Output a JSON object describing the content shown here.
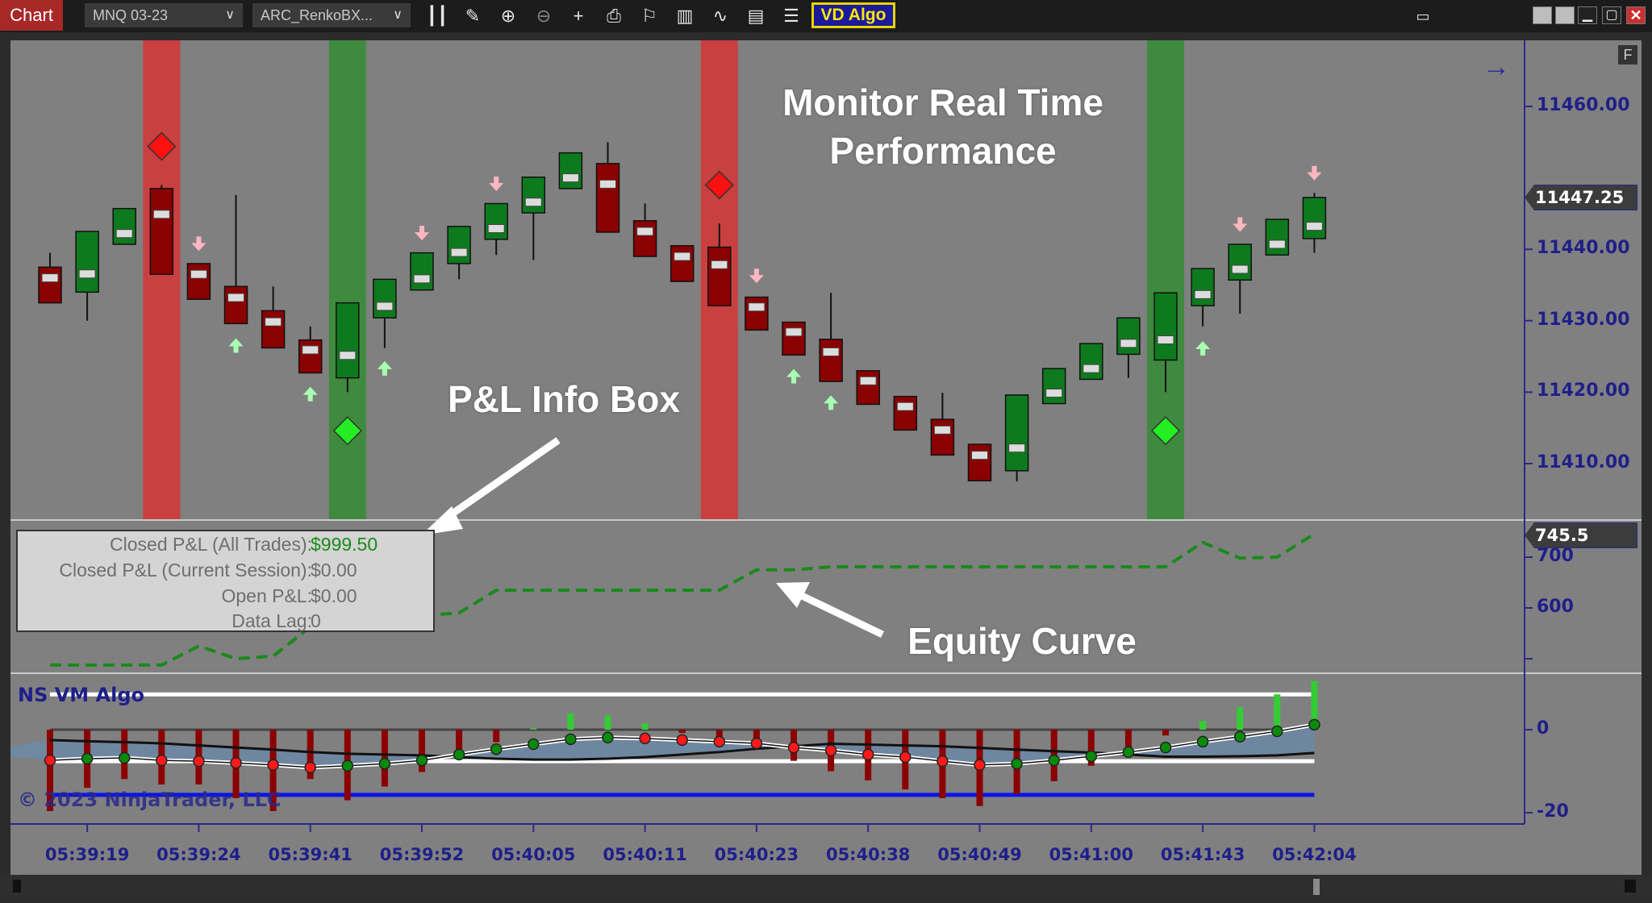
{
  "toolbar": {
    "chart_tab": "Chart",
    "instrument": "MNQ 03-23",
    "bar_type": "ARC_RenkoBX...",
    "vd_algo": "VD Algo",
    "icons": [
      "bar-chart-icon",
      "pencil-icon",
      "zoom-in-icon",
      "zoom-out-icon",
      "crosshair-icon",
      "data-box-icon",
      "strategy-flag-icon",
      "chart-style-icon",
      "line-chart-icon",
      "properties-icon",
      "list-icon"
    ],
    "colors": {
      "chart_tab": "#a82828",
      "vd_algo_bg": "#1a1a9a",
      "vd_algo_border": "#e8d400"
    }
  },
  "annotations": {
    "monitor_line1": "Monitor Real Time",
    "monitor_line2": "Performance",
    "pnl_box_label": "P&L Info Box",
    "equity_label": "Equity Curve"
  },
  "pnl_box": {
    "rows": [
      {
        "label": "Closed P&L (All Trades):",
        "value": "$999.50",
        "color": "#1a8a1a"
      },
      {
        "label": "Closed P&L (Current Session):",
        "value": "$0.00"
      },
      {
        "label": "Open P&L:",
        "value": "$0.00"
      },
      {
        "label": "Data Lag:",
        "value": "0"
      }
    ]
  },
  "price_axis": {
    "labels": [
      "11460.00",
      "11440.00",
      "11430.00",
      "11420.00",
      "11410.00"
    ],
    "last_price": "11447.25",
    "f_button": "F"
  },
  "equity_axis": {
    "labels": [
      "700",
      "600"
    ],
    "last_value": "745.5"
  },
  "indicator": {
    "title": "NS VM Algo",
    "labels": [
      "0",
      "-20"
    ],
    "copyright": "© 2023 NinjaTrader, LLC"
  },
  "time_labels": [
    "05:39:19",
    "05:39:24",
    "05:39:41",
    "05:39:52",
    "05:40:05",
    "05:40:11",
    "05:40:23",
    "05:40:38",
    "05:40:49",
    "05:41:00",
    "05:41:43",
    "05:42:04"
  ],
  "chart_data": {
    "type": "candlestick",
    "price_range": [
      11402,
      11467
    ],
    "candles": [
      [
        11437.5,
        11439.5,
        11432.5,
        11432.5
      ],
      [
        11434,
        11442.5,
        11430,
        11442.5
      ],
      [
        11440.7,
        11445.7,
        11440.7,
        11445.7
      ],
      [
        11448.5,
        11449,
        11436.5,
        11436.5
      ],
      [
        11438,
        11438,
        11433,
        11433
      ],
      [
        11434.8,
        11447.6,
        11429.6,
        11429.6
      ],
      [
        11431.4,
        11434.8,
        11426.2,
        11426.2
      ],
      [
        11427.3,
        11429.2,
        11422.7,
        11422.7
      ],
      [
        11422,
        11432.5,
        11420,
        11432.5
      ],
      [
        11430.4,
        11435.8,
        11426.2,
        11435.8
      ],
      [
        11434.3,
        11439.5,
        11434.3,
        11439.5
      ],
      [
        11438,
        11443.2,
        11435.8,
        11443.2
      ],
      [
        11441.4,
        11446.4,
        11439.2,
        11446.4
      ],
      [
        11445.1,
        11450.1,
        11438.5,
        11450.1
      ],
      [
        11448.5,
        11453.5,
        11448.5,
        11453.5
      ],
      [
        11452,
        11455,
        11442.4,
        11442.4
      ],
      [
        11444,
        11446.4,
        11439,
        11439
      ],
      [
        11440.5,
        11440.5,
        11435.5,
        11435.5
      ],
      [
        11440.3,
        11443.6,
        11432.1,
        11432.1
      ],
      [
        11433.3,
        11433.3,
        11428.7,
        11428.7
      ],
      [
        11429.8,
        11429.8,
        11425.2,
        11425.2
      ],
      [
        11427.4,
        11433.9,
        11421.5,
        11421.5
      ],
      [
        11423,
        11423,
        11418.3,
        11418.3
      ],
      [
        11419.4,
        11419.4,
        11414.7,
        11414.7
      ],
      [
        11416.2,
        11419.9,
        11411.2,
        11411.2
      ],
      [
        11412.7,
        11412.7,
        11407.6,
        11407.6
      ],
      [
        11409,
        11419.6,
        11407.5,
        11419.6
      ],
      [
        11418.4,
        11423.3,
        11418.4,
        11423.3
      ],
      [
        11421.8,
        11426.8,
        11421.8,
        11426.8
      ],
      [
        11425.3,
        11430.4,
        11422,
        11430.4
      ],
      [
        11424.5,
        11433.9,
        11420,
        11433.9
      ],
      [
        11432.1,
        11437.3,
        11429.2,
        11437.3
      ],
      [
        11435.7,
        11440.7,
        11431,
        11440.7
      ],
      [
        11439.2,
        11444.2,
        11439.2,
        11444.2
      ],
      [
        11441.5,
        11447.9,
        11439.5,
        11447.25
      ]
    ],
    "signal_bands": [
      {
        "bar": 3,
        "side": "short"
      },
      {
        "bar": 8,
        "side": "long"
      },
      {
        "bar": 18,
        "side": "short"
      },
      {
        "bar": 30,
        "side": "long"
      }
    ],
    "signal_diamonds": [
      {
        "bar": 3,
        "price": 11454.4,
        "side": "short"
      },
      {
        "bar": 8,
        "price": 11414.6,
        "side": "long"
      },
      {
        "bar": 18,
        "price": 11449,
        "side": "short"
      },
      {
        "bar": 30,
        "price": 11414.6,
        "side": "long"
      }
    ],
    "down_arrows": [
      {
        "bar": 4,
        "price": 11440.2
      },
      {
        "bar": 10,
        "price": 11441.7
      },
      {
        "bar": 12,
        "price": 11448.6
      },
      {
        "bar": 19,
        "price": 11435.7
      },
      {
        "bar": 32,
        "price": 11442.9
      },
      {
        "bar": 34,
        "price": 11450.1
      }
    ],
    "up_arrows": [
      {
        "bar": 5,
        "price": 11427.1
      },
      {
        "bar": 7,
        "price": 11420.3
      },
      {
        "bar": 9,
        "price": 11423.9
      },
      {
        "bar": 20,
        "price": 11422.8
      },
      {
        "bar": 21,
        "price": 11419.1
      },
      {
        "bar": 31,
        "price": 11426.7
      }
    ],
    "equity_curve": [
      487.5,
      487.5,
      487.5,
      487.5,
      525,
      500,
      505,
      562.5,
      565,
      575,
      585,
      590,
      635,
      635,
      635,
      635,
      635,
      635,
      635,
      675,
      675,
      681,
      681,
      681,
      681,
      681,
      681,
      681,
      681,
      681,
      681,
      729,
      698,
      700,
      745.5
    ],
    "indicator_histogram": [
      -19.6,
      -14,
      -11.9,
      -13.2,
      -13.2,
      -16.5,
      -19.6,
      -11.9,
      -17,
      -13.7,
      -10.2,
      -4.8,
      -3,
      0.3,
      3.9,
      3.4,
      1.5,
      -0.8,
      -3.5,
      -4.5,
      -7.5,
      -10,
      -12.2,
      -14.4,
      -16.5,
      -18.4,
      -15.5,
      -12.4,
      -8.7,
      -4.8,
      -1.4,
      2.1,
      5.4,
      8.5,
      11.7
    ],
    "indicator_fast": [
      -7.4,
      -7.0,
      -6.8,
      -7.4,
      -7.6,
      -8.0,
      -8.5,
      -9.1,
      -8.7,
      -8.2,
      -7.4,
      -6.0,
      -4.7,
      -3.5,
      -2.3,
      -1.9,
      -2.1,
      -2.5,
      -2.9,
      -3.3,
      -4.3,
      -5.0,
      -6.0,
      -6.6,
      -7.6,
      -8.5,
      -8.2,
      -7.4,
      -6.4,
      -5.4,
      -4.3,
      -2.9,
      -1.7,
      -0.4,
      1.2
    ],
    "indicator_slow": [
      -2.5,
      -2.8,
      -3.0,
      -3.3,
      -3.8,
      -4.3,
      -4.8,
      -5.4,
      -5.8,
      -6.0,
      -6.2,
      -6.6,
      -7.0,
      -7.2,
      -7.2,
      -7.0,
      -6.6,
      -6.0,
      -5.4,
      -4.6,
      -4.0,
      -3.4,
      -3.6,
      -3.8,
      -4.0,
      -4.4,
      -4.8,
      -5.2,
      -5.5,
      -6.0,
      -6.5,
      -6.5,
      -6.4,
      -6.2,
      -5.6
    ],
    "indicator_levels": {
      "upper": 8.5,
      "zero": 0,
      "lower": -7.6,
      "blue": -15.7
    },
    "colors": {
      "up": "#0e7a1e",
      "down": "#8b0000",
      "short_band": "#c84040",
      "long_band": "#3f8a3f",
      "equity": "#1a8a1a",
      "panel_bg": "#808080",
      "axis": "#1f1f8a"
    }
  }
}
